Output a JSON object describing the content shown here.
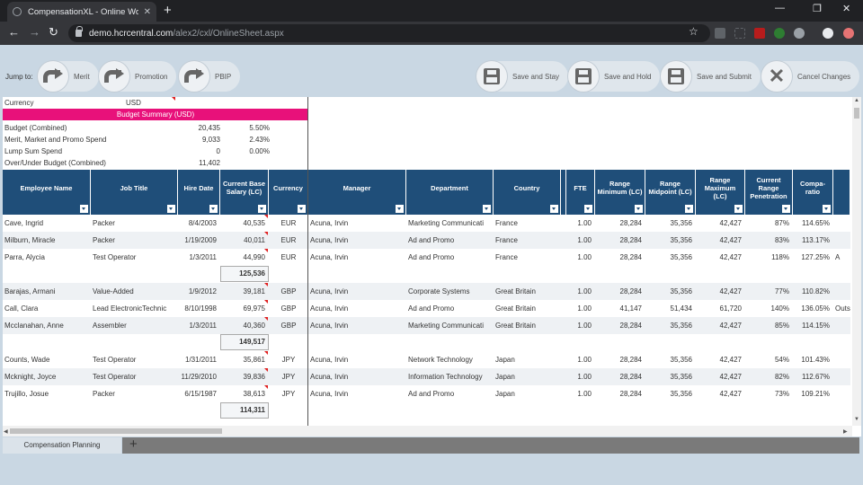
{
  "browser": {
    "tab_title": "CompensationXL - Online Workb",
    "url_host": "demo.hcrcentral.com",
    "url_path": "/alex2/cxl/OnlineSheet.aspx"
  },
  "toolbar": {
    "jump_label": "Jump to:",
    "jump_buttons": [
      "Merit",
      "Promotion",
      "PBIP"
    ],
    "actions": [
      "Save and Stay",
      "Save and Hold",
      "Save and Submit",
      "Cancel Changes"
    ]
  },
  "summary": {
    "currency_label": "Currency",
    "currency_value": "USD",
    "band_title": "Budget Summary (USD)",
    "rows": [
      {
        "label": "Budget (Combined)",
        "value": "20,435",
        "pct": "5.50%"
      },
      {
        "label": "Merit, Market and Promo Spend",
        "value": "9,033",
        "pct": "2.43%"
      },
      {
        "label": "Lump Sum Spend",
        "value": "0",
        "pct": "0.00%"
      },
      {
        "label": "Over/Under Budget (Combined)",
        "value": "11,402",
        "pct": ""
      }
    ]
  },
  "columns": [
    "Employee Name",
    "Job Title",
    "Hire Date",
    "Current Base Salary (LC)",
    "Currency",
    "Manager",
    "Department",
    "Country",
    "FTE",
    "Range Minimum (LC)",
    "Range Midpoint (LC)",
    "Range Maximum (LC)",
    "Current Range Penetration",
    "Compa-ratio"
  ],
  "rows": [
    {
      "name": "Cave, Ingrid",
      "job": "Packer",
      "hire": "8/4/2003",
      "salary": "40,535",
      "cur": "EUR",
      "mgr": "Acuna, Irvin",
      "dept": "Marketing Communicati",
      "country": "France",
      "fte": "1.00",
      "min": "28,284",
      "mid": "35,356",
      "max": "42,427",
      "pen": "87%",
      "compa": "114.65%",
      "extra": ""
    },
    {
      "name": "Milburn, Miracle",
      "job": "Packer",
      "hire": "1/19/2009",
      "salary": "40,011",
      "cur": "EUR",
      "mgr": "Acuna, Irvin",
      "dept": "Ad and Promo",
      "country": "France",
      "fte": "1.00",
      "min": "28,284",
      "mid": "35,356",
      "max": "42,427",
      "pen": "83%",
      "compa": "113.17%",
      "extra": ""
    },
    {
      "name": "Parra, Alycia",
      "job": "Test Operator",
      "hire": "1/3/2011",
      "salary": "44,990",
      "cur": "EUR",
      "mgr": "Acuna, Irvin",
      "dept": "Ad and Promo",
      "country": "France",
      "fte": "1.00",
      "min": "28,284",
      "mid": "35,356",
      "max": "42,427",
      "pen": "118%",
      "compa": "127.25%",
      "extra": "A"
    },
    {
      "name": "Barajas, Armani",
      "job": "Value-Added",
      "hire": "1/9/2012",
      "salary": "39,181",
      "cur": "GBP",
      "mgr": "Acuna, Irvin",
      "dept": "Corporate Systems",
      "country": "Great Britain",
      "fte": "1.00",
      "min": "28,284",
      "mid": "35,356",
      "max": "42,427",
      "pen": "77%",
      "compa": "110.82%",
      "extra": ""
    },
    {
      "name": "Call, Clara",
      "job": "Lead  ElectronicTechnic",
      "hire": "8/10/1998",
      "salary": "69,975",
      "cur": "GBP",
      "mgr": "Acuna, Irvin",
      "dept": "Ad and Promo",
      "country": "Great Britain",
      "fte": "1.00",
      "min": "41,147",
      "mid": "51,434",
      "max": "61,720",
      "pen": "140%",
      "compa": "136.05%",
      "extra": "Outs"
    },
    {
      "name": "Mcclanahan, Anne",
      "job": "Assembler",
      "hire": "1/3/2011",
      "salary": "40,360",
      "cur": "GBP",
      "mgr": "Acuna, Irvin",
      "dept": "Marketing Communicati",
      "country": "Great Britain",
      "fte": "1.00",
      "min": "28,284",
      "mid": "35,356",
      "max": "42,427",
      "pen": "85%",
      "compa": "114.15%",
      "extra": ""
    },
    {
      "name": "Counts, Wade",
      "job": "Test Operator",
      "hire": "1/31/2011",
      "salary": "35,861",
      "cur": "JPY",
      "mgr": "Acuna, Irvin",
      "dept": "Network Technology",
      "country": "Japan",
      "fte": "1.00",
      "min": "28,284",
      "mid": "35,356",
      "max": "42,427",
      "pen": "54%",
      "compa": "101.43%",
      "extra": ""
    },
    {
      "name": "Mcknight, Joyce",
      "job": "Test Operator",
      "hire": "11/29/2010",
      "salary": "39,836",
      "cur": "JPY",
      "mgr": "Acuna, Irvin",
      "dept": "Information Technology",
      "country": "Japan",
      "fte": "1.00",
      "min": "28,284",
      "mid": "35,356",
      "max": "42,427",
      "pen": "82%",
      "compa": "112.67%",
      "extra": ""
    },
    {
      "name": "Trujillo, Josue",
      "job": "Packer",
      "hire": "6/15/1987",
      "salary": "38,613",
      "cur": "JPY",
      "mgr": "Acuna, Irvin",
      "dept": "Ad and Promo",
      "country": "Japan",
      "fte": "1.00",
      "min": "28,284",
      "mid": "35,356",
      "max": "42,427",
      "pen": "73%",
      "compa": "109.21%",
      "extra": ""
    }
  ],
  "subtotals": [
    "125,536",
    "149,517",
    "114,311"
  ],
  "sheet_tab": "Compensation Planning",
  "colors": {
    "header_blue": "#1f4e79",
    "budget_pink": "#e8117a",
    "page_bg": "#c9d7e3"
  }
}
